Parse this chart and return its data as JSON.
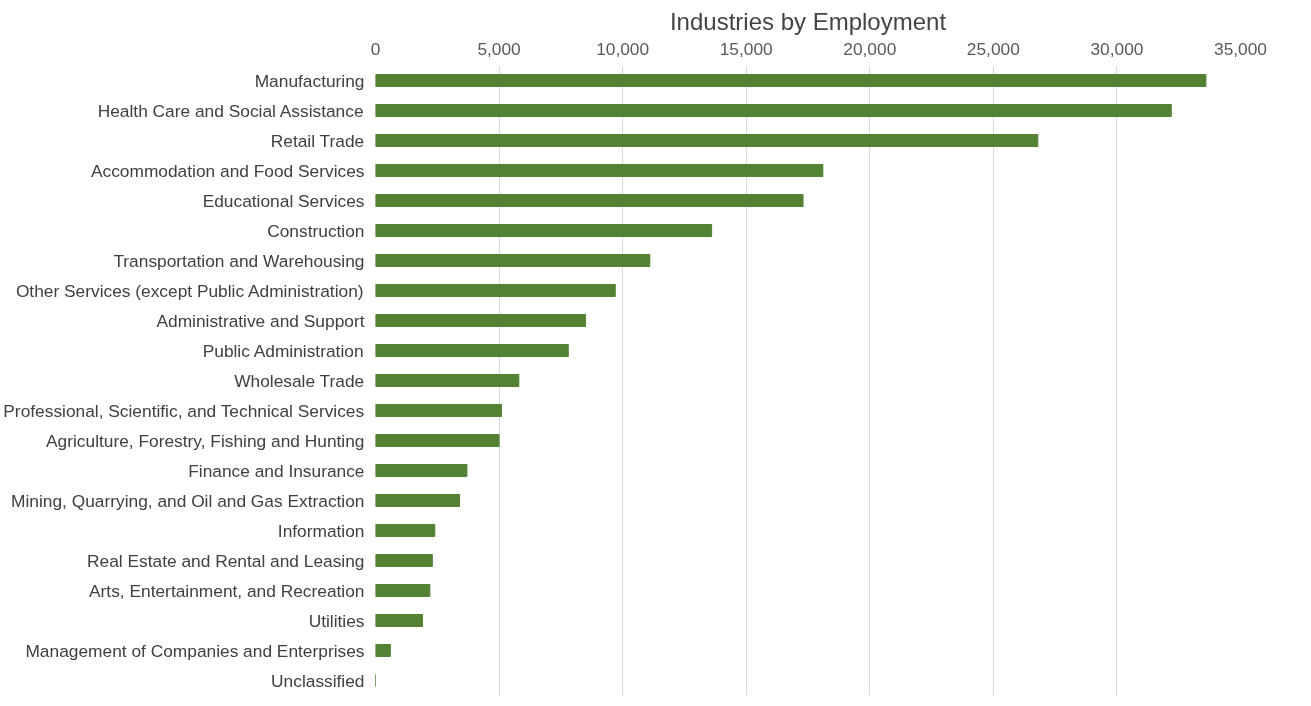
{
  "chart_data": {
    "type": "bar",
    "orientation": "horizontal",
    "title": "Industries by Employment",
    "categories": [
      "Manufacturing",
      "Health Care and Social Assistance",
      "Retail Trade",
      "Accommodation and Food Services",
      "Educational Services",
      "Construction",
      "Transportation and Warehousing",
      "Other Services (except Public Administration)",
      "Administrative and Support",
      "Public Administration",
      "Wholesale Trade",
      "Professional, Scientific, and Technical Services",
      "Agriculture, Forestry, Fishing and Hunting",
      "Finance and Insurance",
      "Mining, Quarrying, and Oil and Gas Extraction",
      "Information",
      "Real Estate and Rental and Leasing",
      "Arts, Entertainment, and Recreation",
      "Utilities",
      "Management of Companies and Enterprises",
      "Unclassified"
    ],
    "values": [
      33600,
      32200,
      26800,
      18100,
      17300,
      13600,
      11100,
      9700,
      8500,
      7800,
      5800,
      5100,
      5000,
      3700,
      3400,
      2400,
      2300,
      2200,
      1900,
      600,
      0
    ],
    "color": "#548235",
    "xlim": [
      0,
      35000
    ],
    "xticks": [
      {
        "value": 0,
        "label": "0"
      },
      {
        "value": 5000,
        "label": "5,000"
      },
      {
        "value": 10000,
        "label": "10,000"
      },
      {
        "value": 15000,
        "label": "15,000"
      },
      {
        "value": 20000,
        "label": "20,000"
      },
      {
        "value": 25000,
        "label": "25,000"
      },
      {
        "value": 30000,
        "label": "30,000"
      },
      {
        "value": 35000,
        "label": "35,000"
      }
    ],
    "grid": "x"
  }
}
